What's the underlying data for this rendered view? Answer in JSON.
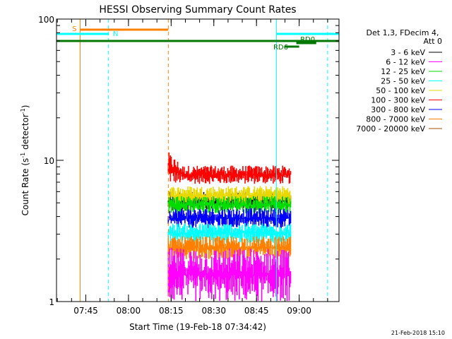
{
  "chart_data": {
    "type": "line",
    "title": "HESSI Observing Summary Count Rates",
    "xlabel": "Start Time (19-Feb-18 07:34:42)",
    "ylabel_main": "Count Rate (s",
    "ylabel_sup1": "-1",
    "ylabel_mid": " detector",
    "ylabel_sup2": "-1",
    "ylabel_end": ")",
    "y_scale": "log",
    "ylim": [
      1,
      100
    ],
    "y_ticks": [
      {
        "value": 1,
        "label": "1"
      },
      {
        "value": 10,
        "label": "10"
      },
      {
        "value": 100,
        "label": "100"
      }
    ],
    "xlim": [
      "07:34:42",
      "09:14:00"
    ],
    "x_ticks": [
      {
        "value": "07:45",
        "label": "07:45"
      },
      {
        "value": "08:00",
        "label": "08:00"
      },
      {
        "value": "08:15",
        "label": "08:15"
      },
      {
        "value": "08:30",
        "label": "08:30"
      },
      {
        "value": "08:45",
        "label": "08:45"
      },
      {
        "value": "09:00",
        "label": "09:00"
      }
    ],
    "legend": {
      "placement": "right",
      "header": [
        "Det 1,3, FDecim 4,",
        "Att 0"
      ],
      "entries": [
        {
          "label": "3 - 6 keV",
          "color": "#000000"
        },
        {
          "label": "6 - 12 keV",
          "color": "#ff00ff"
        },
        {
          "label": "12 - 25 keV",
          "color": "#00dd00"
        },
        {
          "label": "25 - 50 keV",
          "color": "#00ffff"
        },
        {
          "label": "50 - 100 keV",
          "color": "#e8d800"
        },
        {
          "label": "100 - 300 keV",
          "color": "#ff0000"
        },
        {
          "label": "300 - 800 keV",
          "color": "#0000ff"
        },
        {
          "label": "800 - 7000 keV",
          "color": "#ff8000"
        },
        {
          "label": "7000 - 20000 keV",
          "color": "#a05000"
        }
      ]
    },
    "bars": [
      {
        "label": "S",
        "start": "07:43",
        "end": "08:14",
        "color": "#ff8000",
        "row": 1
      },
      {
        "label": "N",
        "start": "07:34:42",
        "end": "07:53",
        "color": "#00ffff",
        "row": 2
      },
      {
        "label": "",
        "start": "08:52",
        "end": "09:14",
        "color": "#00ffff",
        "row": 2
      },
      {
        "label": "",
        "start": "07:34:42",
        "end": "09:14",
        "color": "#007700",
        "row": 3
      },
      {
        "label": "RD0",
        "start": "08:59",
        "end": "09:06",
        "color": "#007700",
        "row": 4
      },
      {
        "label": "RD6",
        "start": "08:55",
        "end": "09:00",
        "color": "#007700",
        "row": 5
      }
    ],
    "vlines": [
      {
        "time": "07:43",
        "color": "#ff8000",
        "style": "solid"
      },
      {
        "time": "07:53",
        "color": "#00ffff",
        "style": "dashed"
      },
      {
        "time": "08:14",
        "color": "#ff8000",
        "style": "dashed"
      },
      {
        "time": "08:52",
        "color": "#00ffff",
        "style": "solid"
      },
      {
        "time": "09:10",
        "color": "#00ffff",
        "style": "dashed"
      }
    ],
    "data_window": {
      "start": "08:14",
      "end": "08:57"
    },
    "series": [
      {
        "name": "100 - 300 keV",
        "color": "#ff0000",
        "band": [
          6.8,
          9.2
        ],
        "start_peak": 11.5
      },
      {
        "name": "3 - 6 keV",
        "color": "#000000",
        "band": [
          4.4,
          6.0
        ]
      },
      {
        "name": "50 - 100 keV",
        "color": "#e8d800",
        "band": [
          4.8,
          6.6
        ]
      },
      {
        "name": "12 - 25 keV",
        "color": "#00dd00",
        "band": [
          4.2,
          5.6
        ]
      },
      {
        "name": "300 - 800 keV",
        "color": "#0000ff",
        "band": [
          3.3,
          4.6
        ]
      },
      {
        "name": "25 - 50 keV",
        "color": "#00ffff",
        "band": [
          2.6,
          3.6
        ]
      },
      {
        "name": "800 - 7000 keV",
        "color": "#ff8000",
        "band": [
          2.0,
          2.9
        ]
      },
      {
        "name": "6 - 12 keV",
        "color": "#ff00ff",
        "band": [
          1.0,
          2.4
        ]
      }
    ]
  },
  "footer_date": "21-Feb-2018 15:10"
}
